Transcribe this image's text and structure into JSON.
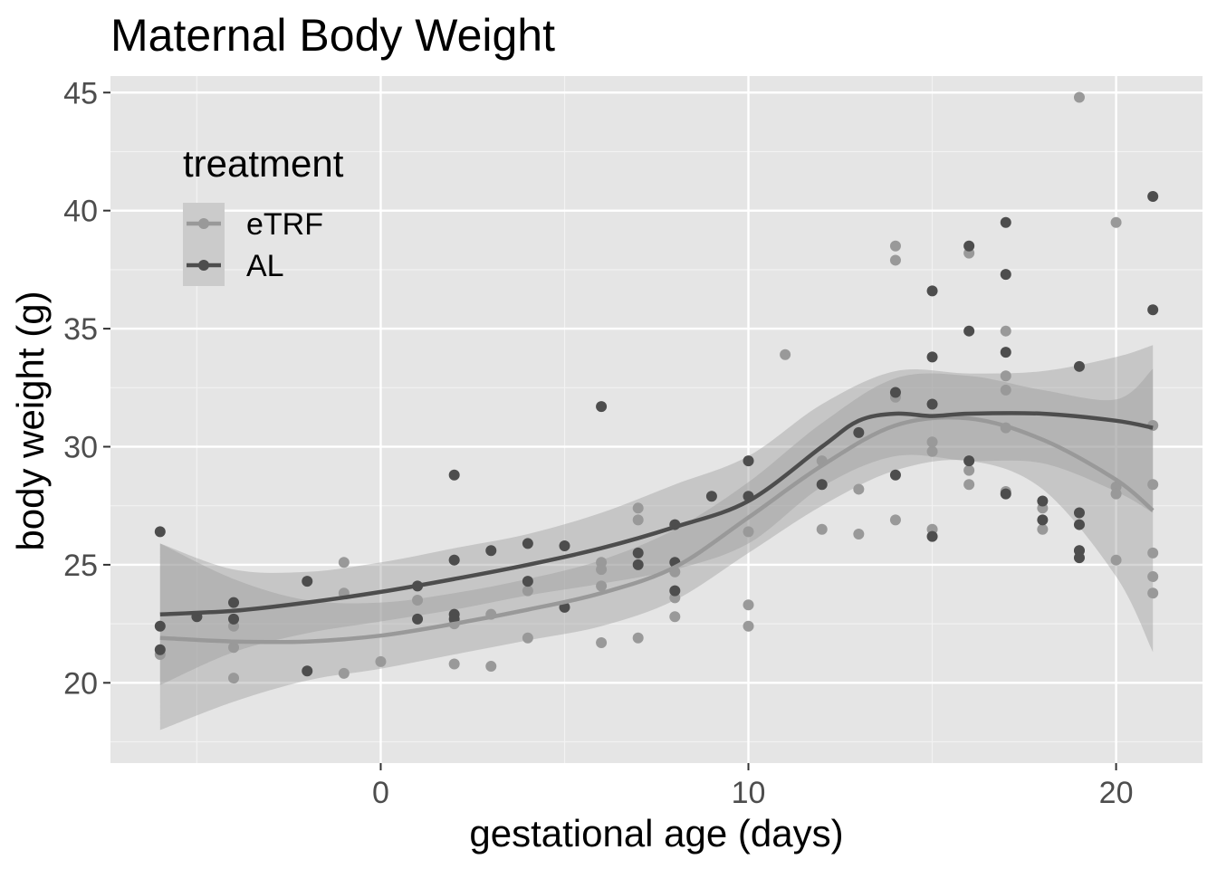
{
  "chart_data": {
    "type": "scatter",
    "title": "Maternal Body Weight",
    "xlabel": "gestational age (days)",
    "ylabel": "body weight (g)",
    "xlim": [
      -7.35,
      22.35
    ],
    "ylim": [
      16.6,
      45.7
    ],
    "x_ticks": [
      0,
      10,
      20
    ],
    "x_tick_labels": [
      "0",
      "10",
      "20"
    ],
    "x_minor_ticks": [
      -5,
      5,
      15
    ],
    "y_ticks": [
      20,
      25,
      30,
      35,
      40,
      45
    ],
    "y_tick_labels": [
      "20",
      "25",
      "30",
      "35",
      "40",
      "45"
    ],
    "y_minor_ticks": [
      17.5,
      22.5,
      27.5,
      32.5,
      37.5,
      42.5
    ],
    "grid": true,
    "legend": {
      "title": "treatment",
      "position": "top-left",
      "entries": [
        "eTRF",
        "AL"
      ]
    },
    "series": [
      {
        "name": "eTRF",
        "color": "#999999",
        "points": [
          [
            -6,
            21.2
          ],
          [
            -4,
            22.4
          ],
          [
            -4,
            21.5
          ],
          [
            -4,
            20.2
          ],
          [
            -1,
            25.1
          ],
          [
            -1,
            23.8
          ],
          [
            -1,
            20.4
          ],
          [
            0,
            20.9
          ],
          [
            1,
            23.5
          ],
          [
            2,
            25.2
          ],
          [
            2,
            22.5
          ],
          [
            2,
            20.8
          ],
          [
            3,
            22.9
          ],
          [
            3,
            20.7
          ],
          [
            4,
            23.9
          ],
          [
            4,
            21.9
          ],
          [
            6,
            25.1
          ],
          [
            6,
            24.8
          ],
          [
            6,
            24.1
          ],
          [
            6,
            21.7
          ],
          [
            7,
            27.4
          ],
          [
            7,
            26.9
          ],
          [
            7,
            21.9
          ],
          [
            8,
            24.7
          ],
          [
            8,
            23.6
          ],
          [
            8,
            22.8
          ],
          [
            10,
            26.4
          ],
          [
            10,
            23.3
          ],
          [
            10,
            22.4
          ],
          [
            11,
            33.9
          ],
          [
            12,
            29.4
          ],
          [
            12,
            26.5
          ],
          [
            13,
            28.2
          ],
          [
            13,
            26.3
          ],
          [
            14,
            38.5
          ],
          [
            14,
            37.9
          ],
          [
            14,
            32.1
          ],
          [
            14,
            26.9
          ],
          [
            15,
            30.2
          ],
          [
            15,
            29.8
          ],
          [
            15,
            26.5
          ],
          [
            16,
            38.2
          ],
          [
            16,
            29.0
          ],
          [
            16,
            28.4
          ],
          [
            17,
            34.9
          ],
          [
            17,
            33.0
          ],
          [
            17,
            32.4
          ],
          [
            17,
            30.8
          ],
          [
            17,
            28.1
          ],
          [
            18,
            27.4
          ],
          [
            18,
            26.5
          ],
          [
            19,
            44.8
          ],
          [
            19,
            25.6
          ],
          [
            20,
            39.5
          ],
          [
            20,
            28.3
          ],
          [
            20,
            28.0
          ],
          [
            20,
            25.2
          ],
          [
            21,
            30.9
          ],
          [
            21,
            28.4
          ],
          [
            21,
            25.5
          ],
          [
            21,
            24.5
          ],
          [
            21,
            23.8
          ]
        ],
        "smooth": [
          [
            -6,
            21.9
          ],
          [
            -4,
            21.75
          ],
          [
            -2,
            21.75
          ],
          [
            0,
            22.0
          ],
          [
            2,
            22.5
          ],
          [
            4,
            23.1
          ],
          [
            6,
            23.8
          ],
          [
            8,
            24.9
          ],
          [
            10,
            27.0
          ],
          [
            12,
            29.2
          ],
          [
            14,
            30.9
          ],
          [
            16,
            31.2
          ],
          [
            18,
            30.3
          ],
          [
            20,
            28.6
          ],
          [
            21,
            27.3
          ]
        ],
        "ci_low": [
          [
            -6,
            18.0
          ],
          [
            -4,
            19.2
          ],
          [
            -2,
            20.1
          ],
          [
            0,
            20.6
          ],
          [
            2,
            21.2
          ],
          [
            4,
            21.8
          ],
          [
            6,
            22.4
          ],
          [
            8,
            23.5
          ],
          [
            10,
            25.5
          ],
          [
            12,
            27.5
          ],
          [
            14,
            29.0
          ],
          [
            16,
            29.4
          ],
          [
            18,
            28.2
          ],
          [
            20,
            24.5
          ],
          [
            21,
            21.3
          ]
        ],
        "ci_high": [
          [
            -6,
            25.9
          ],
          [
            -4,
            24.4
          ],
          [
            -2,
            23.5
          ],
          [
            0,
            23.4
          ],
          [
            2,
            23.8
          ],
          [
            4,
            24.4
          ],
          [
            6,
            25.2
          ],
          [
            8,
            26.5
          ],
          [
            10,
            28.5
          ],
          [
            12,
            31.0
          ],
          [
            14,
            32.9
          ],
          [
            16,
            33.0
          ],
          [
            18,
            32.4
          ],
          [
            20,
            32.0
          ],
          [
            21,
            33.3
          ]
        ]
      },
      {
        "name": "AL",
        "color": "#4d4d4d",
        "points": [
          [
            -6,
            26.4
          ],
          [
            -6,
            22.4
          ],
          [
            -6,
            21.4
          ],
          [
            -5,
            22.8
          ],
          [
            -4,
            23.4
          ],
          [
            -4,
            22.7
          ],
          [
            -2,
            24.3
          ],
          [
            -2,
            20.5
          ],
          [
            1,
            24.1
          ],
          [
            1,
            22.7
          ],
          [
            2,
            28.8
          ],
          [
            2,
            25.2
          ],
          [
            2,
            22.9
          ],
          [
            2,
            22.7
          ],
          [
            3,
            25.6
          ],
          [
            4,
            25.9
          ],
          [
            4,
            24.3
          ],
          [
            5,
            25.8
          ],
          [
            5,
            23.2
          ],
          [
            6,
            31.7
          ],
          [
            7,
            25.5
          ],
          [
            7,
            25.0
          ],
          [
            8,
            26.7
          ],
          [
            8,
            25.1
          ],
          [
            8,
            23.9
          ],
          [
            9,
            27.9
          ],
          [
            10,
            29.4
          ],
          [
            10,
            27.9
          ],
          [
            12,
            28.4
          ],
          [
            13,
            30.6
          ],
          [
            14,
            32.3
          ],
          [
            14,
            28.8
          ],
          [
            15,
            36.6
          ],
          [
            15,
            33.8
          ],
          [
            15,
            31.8
          ],
          [
            15,
            26.2
          ],
          [
            16,
            38.5
          ],
          [
            16,
            34.9
          ],
          [
            16,
            29.4
          ],
          [
            17,
            39.5
          ],
          [
            17,
            37.3
          ],
          [
            17,
            34.0
          ],
          [
            17,
            28.0
          ],
          [
            18,
            27.7
          ],
          [
            18,
            26.9
          ],
          [
            19,
            33.4
          ],
          [
            19,
            27.2
          ],
          [
            19,
            26.7
          ],
          [
            19,
            25.6
          ],
          [
            19,
            25.3
          ],
          [
            21,
            40.6
          ],
          [
            21,
            35.8
          ]
        ],
        "smooth": [
          [
            -6,
            22.9
          ],
          [
            -4,
            23.05
          ],
          [
            -2,
            23.4
          ],
          [
            0,
            23.85
          ],
          [
            2,
            24.4
          ],
          [
            4,
            25.0
          ],
          [
            6,
            25.7
          ],
          [
            8,
            26.6
          ],
          [
            10,
            27.7
          ],
          [
            12,
            30.0
          ],
          [
            13,
            31.1
          ],
          [
            14,
            31.4
          ],
          [
            15,
            31.3
          ],
          [
            16,
            31.4
          ],
          [
            18,
            31.4
          ],
          [
            20,
            31.1
          ],
          [
            21,
            30.8
          ]
        ],
        "ci_low": [
          [
            -6,
            19.9
          ],
          [
            -4,
            21.3
          ],
          [
            -2,
            22.1
          ],
          [
            0,
            22.6
          ],
          [
            2,
            23.1
          ],
          [
            4,
            23.7
          ],
          [
            6,
            24.2
          ],
          [
            8,
            24.8
          ],
          [
            10,
            25.9
          ],
          [
            12,
            28.3
          ],
          [
            14,
            29.6
          ],
          [
            16,
            29.4
          ],
          [
            18,
            29.3
          ],
          [
            20,
            28.1
          ],
          [
            21,
            27.2
          ]
        ],
        "ci_high": [
          [
            -6,
            25.9
          ],
          [
            -4,
            24.8
          ],
          [
            -2,
            24.7
          ],
          [
            0,
            25.1
          ],
          [
            2,
            25.7
          ],
          [
            4,
            26.3
          ],
          [
            6,
            27.2
          ],
          [
            8,
            28.4
          ],
          [
            10,
            29.6
          ],
          [
            12,
            31.8
          ],
          [
            14,
            33.2
          ],
          [
            16,
            33.1
          ],
          [
            18,
            33.2
          ],
          [
            20,
            33.8
          ],
          [
            21,
            34.3
          ]
        ]
      }
    ]
  }
}
